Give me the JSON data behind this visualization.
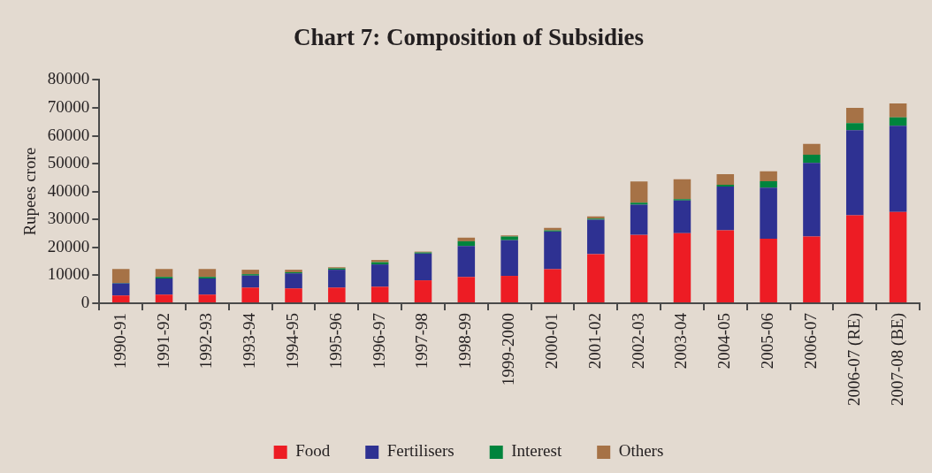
{
  "chart_data": {
    "type": "bar",
    "title": "Chart 7: Composition of Subsidies",
    "ylabel": "Rupees crore",
    "categories": [
      "1990-91",
      "1991-92",
      "1992-93",
      "1993-94",
      "1994-95",
      "1995-96",
      "1996-97",
      "1997-98",
      "1998-99",
      "1999-2000",
      "2000-01",
      "2001-02",
      "2002-03",
      "2003-04",
      "2004-05",
      "2005-06",
      "2006-07",
      "2006-07 (RE)",
      "2007-08 (BE)"
    ],
    "series": [
      {
        "name": "Food",
        "color": "#ed1c24",
        "values": [
          2800,
          3100,
          3100,
          5600,
          5300,
          5600,
          5900,
          8200,
          9400,
          9800,
          12200,
          17600,
          24500,
          25100,
          26100,
          23100,
          23900,
          31500,
          32700
        ]
      },
      {
        "name": "Fertilisers",
        "color": "#2e3192",
        "values": [
          4300,
          5800,
          5800,
          4300,
          5400,
          6400,
          8000,
          9600,
          11100,
          12800,
          13500,
          12300,
          10800,
          11700,
          15700,
          18300,
          26400,
          30500,
          30900
        ]
      },
      {
        "name": "Interest",
        "color": "#00843d",
        "values": [
          200,
          500,
          500,
          500,
          400,
          500,
          800,
          400,
          1700,
          1300,
          400,
          400,
          700,
          500,
          600,
          2300,
          2900,
          2500,
          3000
        ]
      },
      {
        "name": "Others",
        "color": "#a67246",
        "values": [
          5000,
          2900,
          2900,
          1600,
          900,
          400,
          800,
          300,
          1300,
          400,
          900,
          800,
          7600,
          7100,
          3800,
          3600,
          3900,
          5500,
          5000
        ]
      }
    ],
    "stacked": true,
    "ylim": [
      0,
      80000
    ],
    "yticks": [
      0,
      10000,
      20000,
      30000,
      40000,
      50000,
      60000,
      70000,
      80000
    ],
    "grid": false,
    "legend": "bottom"
  }
}
